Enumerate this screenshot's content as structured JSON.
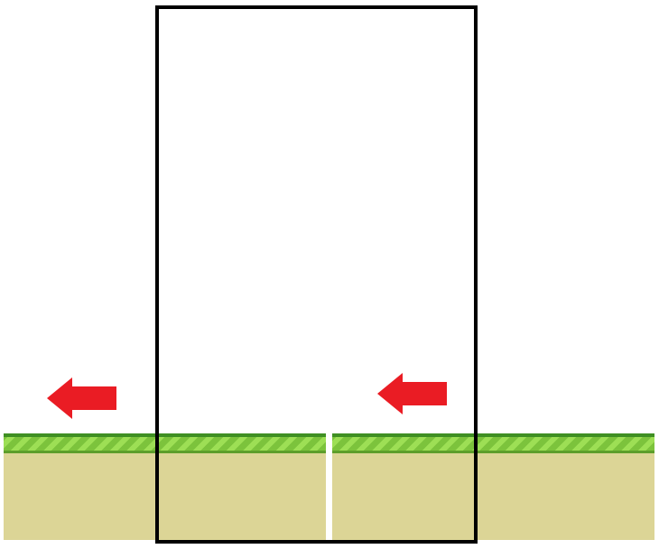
{
  "scene": {
    "background_color": "#ffffff",
    "ground": {
      "grass_color": "#7cc33c",
      "grass_stripe_color": "#9ddf55",
      "dirt_color": "#dcd596",
      "tiles": [
        "ground-tile-left",
        "ground-tile-right"
      ]
    },
    "viewport_frame": {
      "border_color": "#000000"
    },
    "arrows": [
      {
        "name": "left-arrow-icon",
        "direction": "left",
        "color": "#ea1c24"
      },
      {
        "name": "left-arrow-icon",
        "direction": "left",
        "color": "#ea1c24"
      }
    ]
  }
}
